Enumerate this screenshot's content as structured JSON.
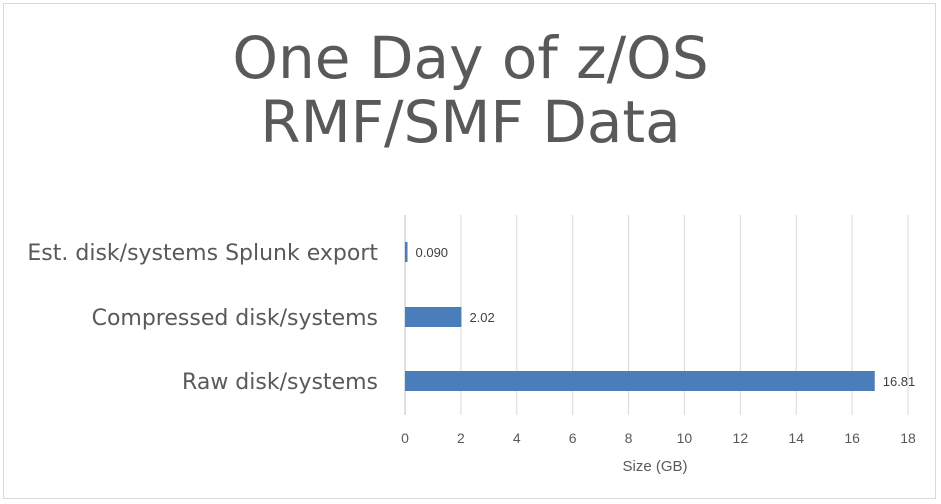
{
  "chart_data": {
    "type": "bar",
    "orientation": "horizontal",
    "title_lines": [
      "One Day of z/OS",
      "RMF/SMF Data"
    ],
    "categories": [
      "Est. disk/systems Splunk export",
      "Compressed disk/systems",
      "Raw disk/systems"
    ],
    "values": [
      0.09,
      2.02,
      16.81
    ],
    "data_labels": [
      "0.090",
      "2.02",
      "16.81"
    ],
    "xlabel": "Size (GB)",
    "ylabel": "",
    "xlim": [
      0,
      18
    ],
    "xticks": [
      "0",
      "2",
      "4",
      "6",
      "8",
      "10",
      "12",
      "14",
      "16",
      "18"
    ],
    "grid": "vertical",
    "legend": "none",
    "bar_color": "#4a7ebb"
  }
}
